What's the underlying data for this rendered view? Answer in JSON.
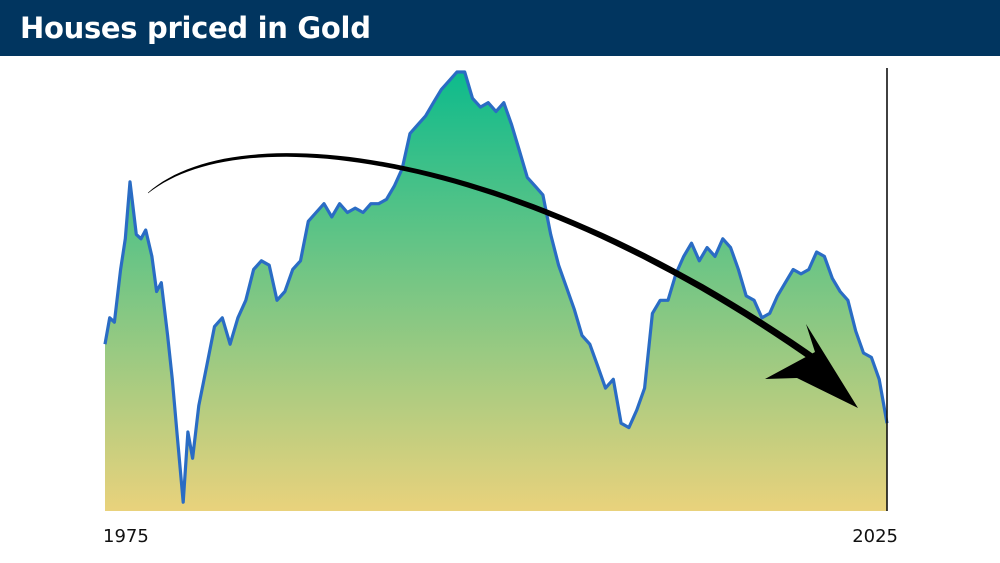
{
  "title": "Houses priced in Gold",
  "colors": {
    "header_bg": "#01355f",
    "line": "#2a6cc4",
    "fill_top": "#0dbb8c",
    "fill_bottom": "#e9d27c",
    "arrow": "#000000"
  },
  "chart_data": {
    "type": "area",
    "title": "Houses priced in Gold",
    "xlabel": "",
    "ylabel": "",
    "xlim": [
      1975,
      2025
    ],
    "x_tick_labels": [
      "1975",
      "2025"
    ],
    "ylim": [
      0,
      100
    ],
    "y_axis_labels": false,
    "grid": false,
    "legend": "none",
    "annotation": "curved arrow descending from the 1976 peak, over the 2001 peak, to 2025",
    "x": [
      1975.0,
      1975.3,
      1975.6,
      1976.0,
      1976.3,
      1976.6,
      1977.0,
      1977.3,
      1977.6,
      1978.0,
      1978.3,
      1978.6,
      1979.0,
      1979.3,
      1979.6,
      1980.0,
      1980.3,
      1980.6,
      1981.0,
      1981.5,
      1982.0,
      1982.5,
      1983.0,
      1983.5,
      1984.0,
      1984.5,
      1985.0,
      1985.5,
      1986.0,
      1986.5,
      1987.0,
      1987.5,
      1988.0,
      1988.5,
      1989.0,
      1989.5,
      1990.0,
      1990.5,
      1991.0,
      1991.5,
      1992.0,
      1992.5,
      1993.0,
      1993.5,
      1994.0,
      1994.5,
      1995.0,
      1995.5,
      1996.0,
      1996.5,
      1997.0,
      1997.5,
      1998.0,
      1998.5,
      1999.0,
      1999.5,
      2000.0,
      2000.5,
      2001.0,
      2001.5,
      2002.0,
      2002.5,
      2003.0,
      2003.5,
      2004.0,
      2004.5,
      2005.0,
      2005.5,
      2006.0,
      2006.5,
      2007.0,
      2007.5,
      2008.0,
      2008.5,
      2009.0,
      2009.5,
      2010.0,
      2010.5,
      2011.0,
      2011.5,
      2012.0,
      2012.5,
      2013.0,
      2013.5,
      2014.0,
      2014.5,
      2015.0,
      2015.5,
      2016.0,
      2016.5,
      2017.0,
      2017.5,
      2018.0,
      2018.5,
      2019.0,
      2019.5,
      2020.0,
      2020.5,
      2021.0,
      2021.5,
      2022.0,
      2022.5,
      2023.0,
      2023.5,
      2024.0,
      2024.5,
      2025.0
    ],
    "values": [
      38,
      44,
      43,
      55,
      62,
      75,
      63,
      62,
      64,
      58,
      50,
      52,
      40,
      30,
      18,
      2,
      18,
      12,
      24,
      33,
      42,
      44,
      38,
      44,
      48,
      55,
      57,
      56,
      48,
      50,
      55,
      57,
      66,
      68,
      70,
      67,
      70,
      68,
      69,
      68,
      70,
      70,
      71,
      74,
      78,
      86,
      88,
      90,
      93,
      96,
      98,
      100,
      100,
      94,
      92,
      93,
      91,
      93,
      88,
      82,
      76,
      74,
      72,
      63,
      56,
      51,
      46,
      40,
      38,
      33,
      28,
      30,
      20,
      19,
      23,
      28,
      45,
      48,
      48,
      54,
      58,
      61,
      57,
      60,
      58,
      62,
      60,
      55,
      49,
      48,
      44,
      45,
      49,
      52,
      55,
      54,
      55,
      59,
      58,
      53,
      50,
      48,
      41,
      36,
      35,
      30,
      20
    ]
  }
}
